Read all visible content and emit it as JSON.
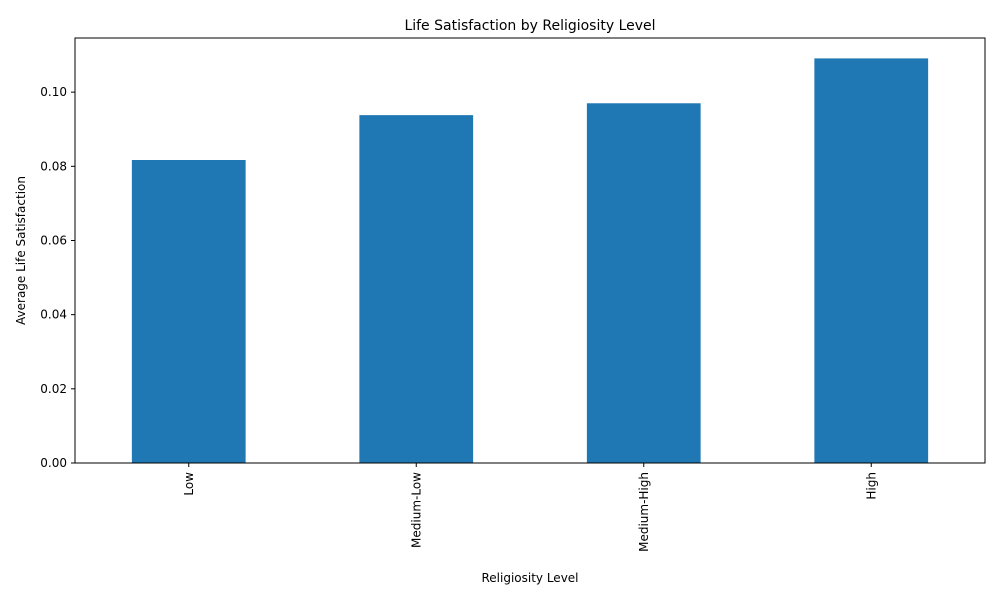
{
  "chart_data": {
    "type": "bar",
    "title": "Life Satisfaction by Religiosity Level",
    "xlabel": "Religiosity Level",
    "ylabel": "Average Life Satisfaction",
    "categories": [
      "Low",
      "Medium-Low",
      "Medium-High",
      "High"
    ],
    "values": [
      0.0817,
      0.0938,
      0.097,
      0.1091
    ],
    "ylim": [
      0,
      0.1146
    ],
    "yticks": [
      0.0,
      0.02,
      0.04,
      0.06,
      0.08,
      0.1
    ],
    "ytick_labels": [
      "0.00",
      "0.02",
      "0.04",
      "0.06",
      "0.08",
      "0.10"
    ],
    "grid": false,
    "legend": "none",
    "bar_color": "#1f77b4"
  }
}
